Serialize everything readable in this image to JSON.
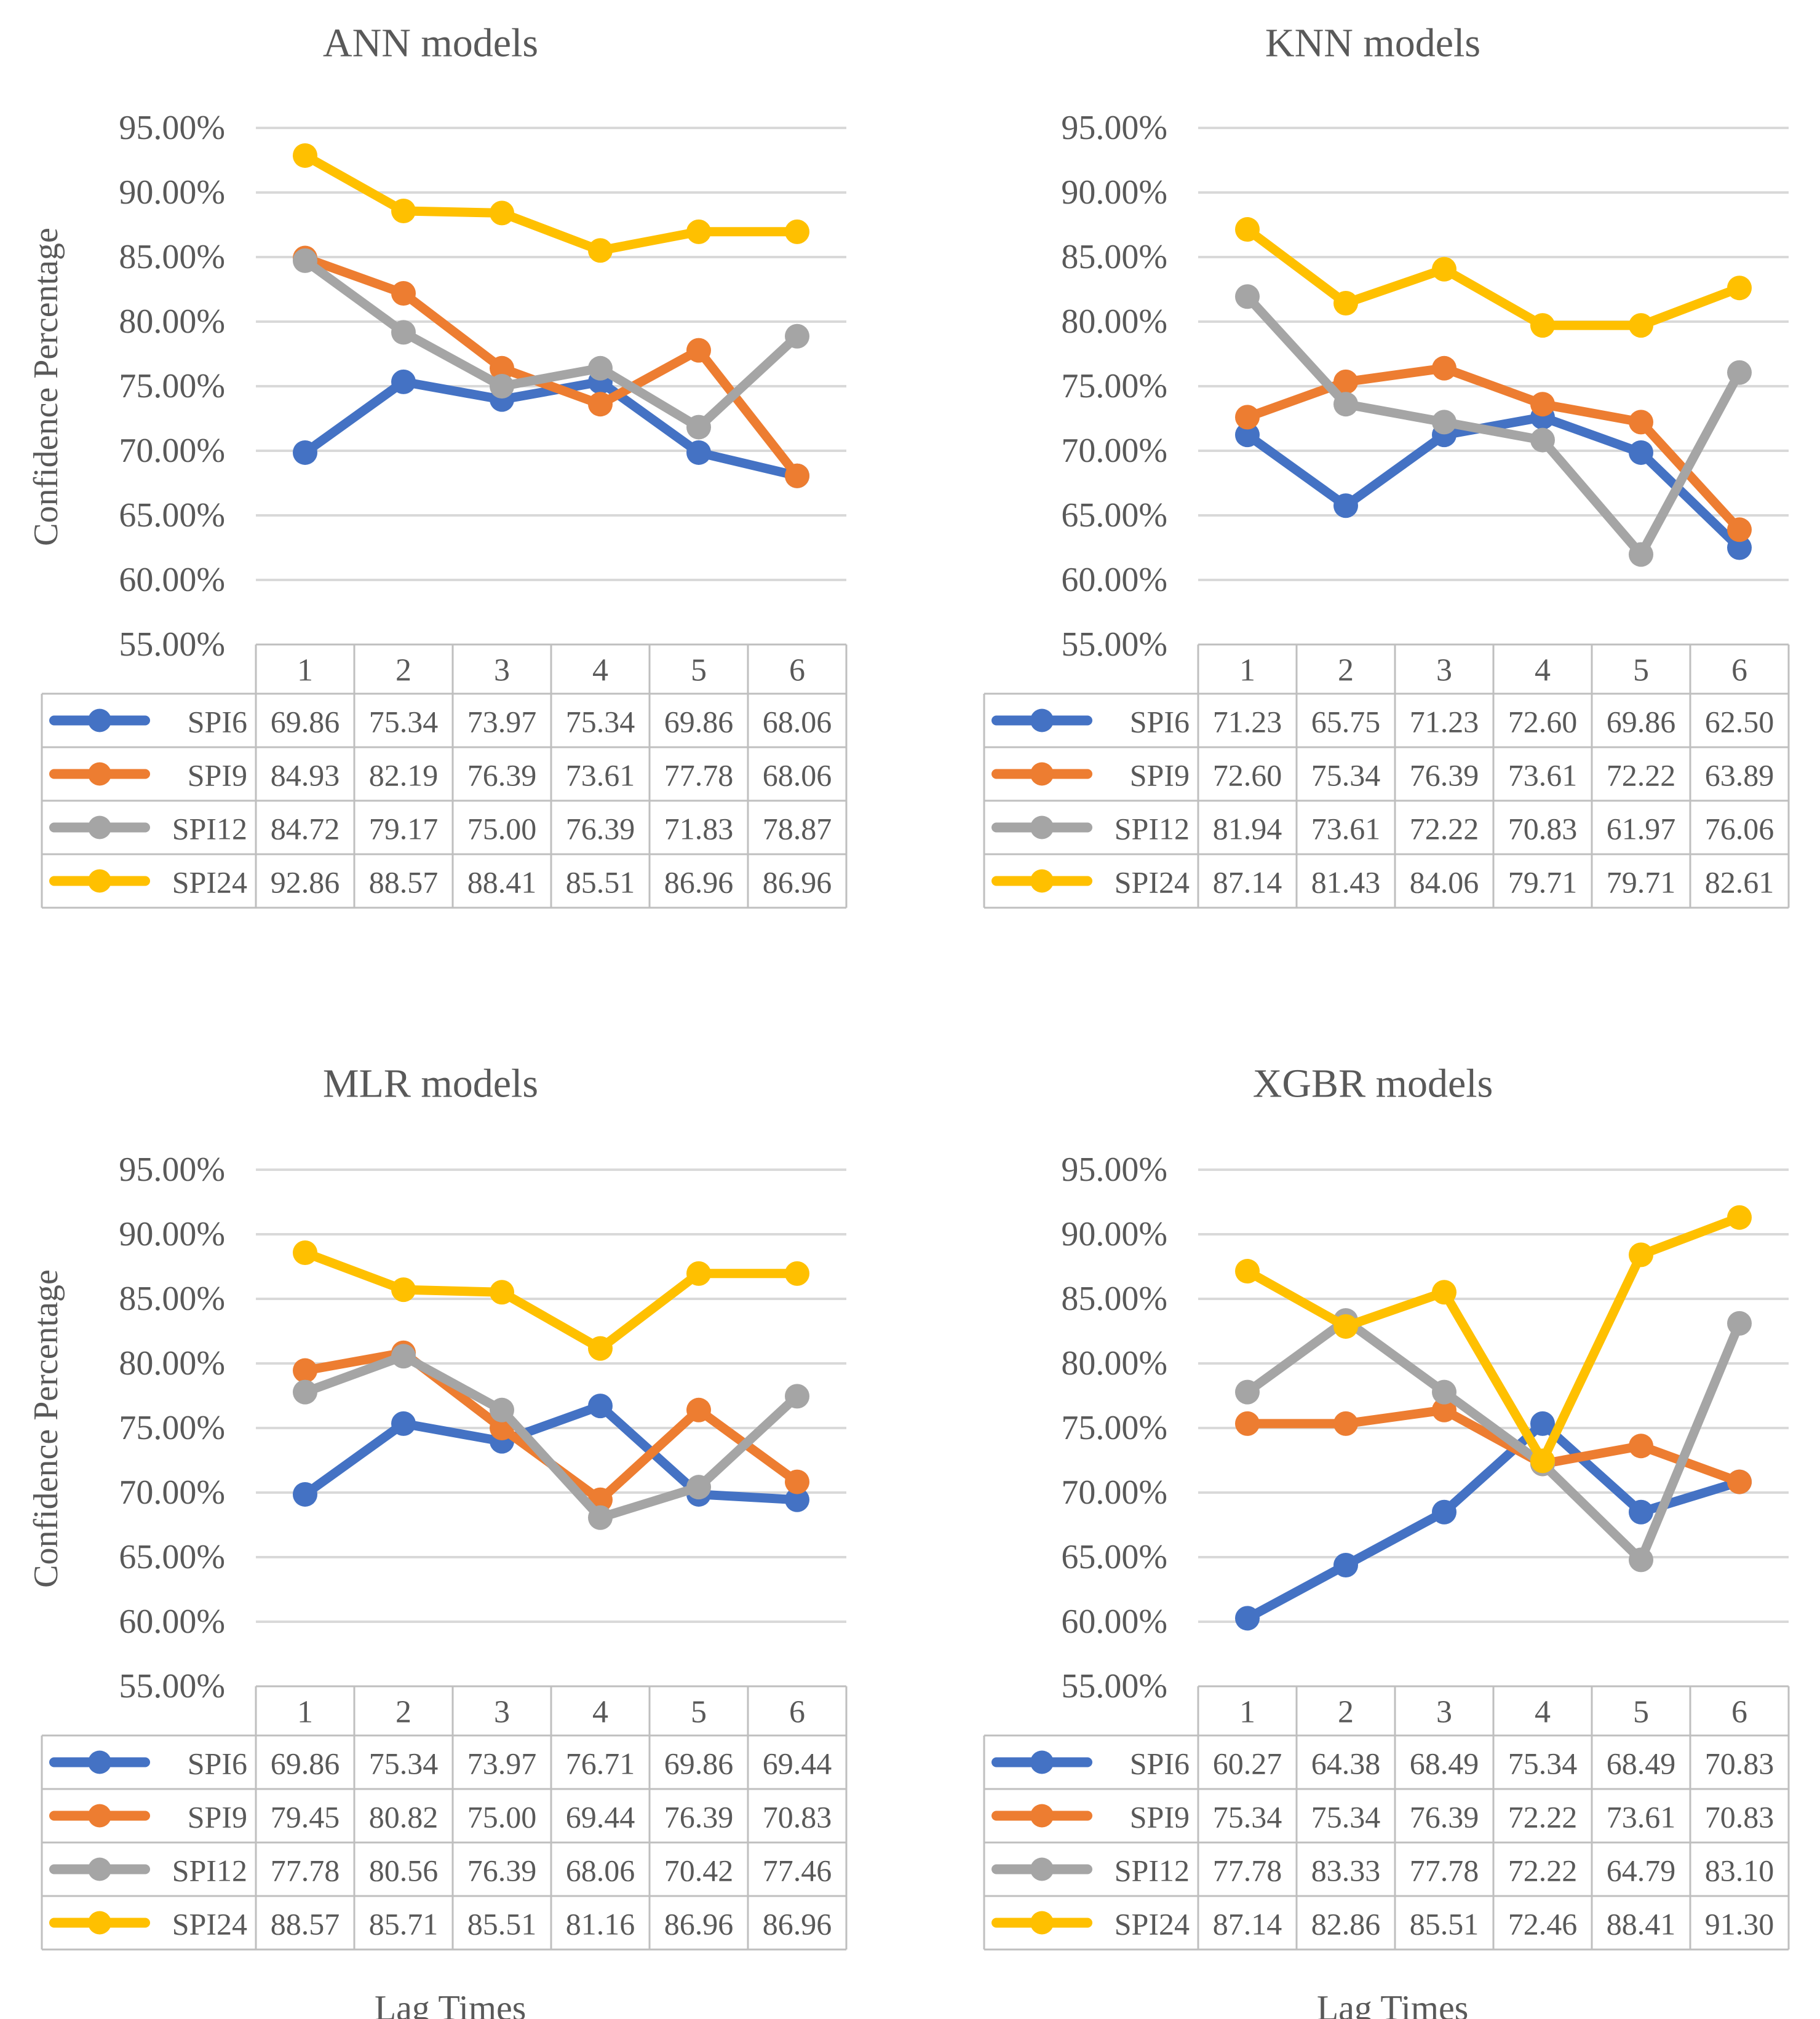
{
  "figure": {
    "y_axis_label": "Confidence Percentage",
    "x_axis_label": "Lag Times"
  },
  "colors": {
    "SPI6": "#4472C4",
    "SPI9": "#ED7D31",
    "SPI12": "#A5A5A5",
    "SPI24": "#FFC000",
    "grid": "#D9D9D9",
    "table_border": "#BFBFBF",
    "text": "#595959"
  },
  "chart_data": [
    {
      "type": "line",
      "title": "ANN models",
      "categories": [
        "1",
        "2",
        "3",
        "4",
        "5",
        "6"
      ],
      "ylim": [
        55,
        95
      ],
      "yticks": [
        "95.00%",
        "90.00%",
        "85.00%",
        "80.00%",
        "75.00%",
        "70.00%",
        "65.00%",
        "60.00%",
        "55.00%"
      ],
      "ylabel": "Confidence Percentage",
      "xlabel": "",
      "series": [
        {
          "name": "SPI6",
          "values": [
            69.86,
            75.34,
            73.97,
            75.34,
            69.86,
            68.06
          ],
          "labels": [
            "69.86",
            "75.34",
            "73.97",
            "75.34",
            "69.86",
            "68.06"
          ]
        },
        {
          "name": "SPI9",
          "values": [
            84.93,
            82.19,
            76.39,
            73.61,
            77.78,
            68.06
          ],
          "labels": [
            "84.93",
            "82.19",
            "76.39",
            "73.61",
            "77.78",
            "68.06"
          ]
        },
        {
          "name": "SPI12",
          "values": [
            84.72,
            79.17,
            75.0,
            76.39,
            71.83,
            78.87
          ],
          "labels": [
            "84.72",
            "79.17",
            "75.00",
            "76.39",
            "71.83",
            "78.87"
          ]
        },
        {
          "name": "SPI24",
          "values": [
            92.86,
            88.57,
            88.41,
            85.51,
            86.96,
            86.96
          ],
          "labels": [
            "92.86",
            "88.57",
            "88.41",
            "85.51",
            "86.96",
            "86.96"
          ]
        }
      ]
    },
    {
      "type": "line",
      "title": "KNN models",
      "categories": [
        "1",
        "2",
        "3",
        "4",
        "5",
        "6"
      ],
      "ylim": [
        55,
        95
      ],
      "yticks": [
        "95.00%",
        "90.00%",
        "85.00%",
        "80.00%",
        "75.00%",
        "70.00%",
        "65.00%",
        "60.00%",
        "55.00%"
      ],
      "ylabel": "",
      "xlabel": "",
      "series": [
        {
          "name": "SPI6",
          "values": [
            71.23,
            65.75,
            71.23,
            72.6,
            69.86,
            62.5
          ],
          "labels": [
            "71.23",
            "65.75",
            "71.23",
            "72.60",
            "69.86",
            "62.50"
          ]
        },
        {
          "name": "SPI9",
          "values": [
            72.6,
            75.34,
            76.39,
            73.61,
            72.22,
            63.89
          ],
          "labels": [
            "72.60",
            "75.34",
            "76.39",
            "73.61",
            "72.22",
            "63.89"
          ]
        },
        {
          "name": "SPI12",
          "values": [
            81.94,
            73.61,
            72.22,
            70.83,
            61.97,
            76.06
          ],
          "labels": [
            "81.94",
            "73.61",
            "72.22",
            "70.83",
            "61.97",
            "76.06"
          ]
        },
        {
          "name": "SPI24",
          "values": [
            87.14,
            81.43,
            84.06,
            79.71,
            79.71,
            82.61
          ],
          "labels": [
            "87.14",
            "81.43",
            "84.06",
            "79.71",
            "79.71",
            "82.61"
          ]
        }
      ]
    },
    {
      "type": "line",
      "title": "MLR models",
      "categories": [
        "1",
        "2",
        "3",
        "4",
        "5",
        "6"
      ],
      "ylim": [
        55,
        95
      ],
      "yticks": [
        "95.00%",
        "90.00%",
        "85.00%",
        "80.00%",
        "75.00%",
        "70.00%",
        "65.00%",
        "60.00%",
        "55.00%"
      ],
      "ylabel": "Confidence Percentage",
      "xlabel": "Lag Times",
      "series": [
        {
          "name": "SPI6",
          "values": [
            69.86,
            75.34,
            73.97,
            76.71,
            69.86,
            69.44
          ],
          "labels": [
            "69.86",
            "75.34",
            "73.97",
            "76.71",
            "69.86",
            "69.44"
          ]
        },
        {
          "name": "SPI9",
          "values": [
            79.45,
            80.82,
            75.0,
            69.44,
            76.39,
            70.83
          ],
          "labels": [
            "79.45",
            "80.82",
            "75.00",
            "69.44",
            "76.39",
            "70.83"
          ]
        },
        {
          "name": "SPI12",
          "values": [
            77.78,
            80.56,
            76.39,
            68.06,
            70.42,
            77.46
          ],
          "labels": [
            "77.78",
            "80.56",
            "76.39",
            "68.06",
            "70.42",
            "77.46"
          ]
        },
        {
          "name": "SPI24",
          "values": [
            88.57,
            85.71,
            85.51,
            81.16,
            86.96,
            86.96
          ],
          "labels": [
            "88.57",
            "85.71",
            "85.51",
            "81.16",
            "86.96",
            "86.96"
          ]
        }
      ]
    },
    {
      "type": "line",
      "title": "XGBR models",
      "categories": [
        "1",
        "2",
        "3",
        "4",
        "5",
        "6"
      ],
      "ylim": [
        55,
        95
      ],
      "yticks": [
        "95.00%",
        "90.00%",
        "85.00%",
        "80.00%",
        "75.00%",
        "70.00%",
        "65.00%",
        "60.00%",
        "55.00%"
      ],
      "ylabel": "",
      "xlabel": "Lag Times",
      "series": [
        {
          "name": "SPI6",
          "values": [
            60.27,
            64.38,
            68.49,
            75.34,
            68.49,
            70.83
          ],
          "labels": [
            "60.27",
            "64.38",
            "68.49",
            "75.34",
            "68.49",
            "70.83"
          ]
        },
        {
          "name": "SPI9",
          "values": [
            75.34,
            75.34,
            76.39,
            72.22,
            73.61,
            70.83
          ],
          "labels": [
            "75.34",
            "75.34",
            "76.39",
            "72.22",
            "73.61",
            "70.83"
          ]
        },
        {
          "name": "SPI12",
          "values": [
            77.78,
            83.33,
            77.78,
            72.22,
            64.79,
            83.1
          ],
          "labels": [
            "77.78",
            "83.33",
            "77.78",
            "72.22",
            "64.79",
            "83.10"
          ]
        },
        {
          "name": "SPI24",
          "values": [
            87.14,
            82.86,
            85.51,
            72.46,
            88.41,
            91.3
          ],
          "labels": [
            "87.14",
            "82.86",
            "85.51",
            "72.46",
            "88.41",
            "91.30"
          ]
        }
      ]
    }
  ]
}
